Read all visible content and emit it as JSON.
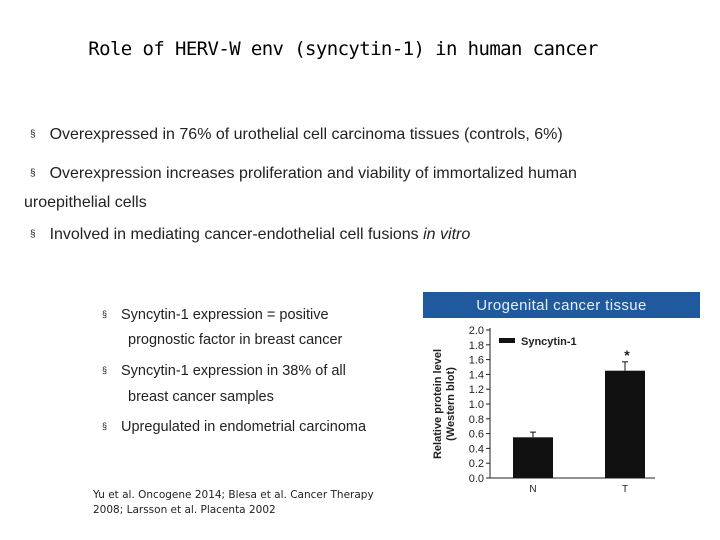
{
  "slide": {
    "title": "Role of HERV-W env (syncytin-1) in human cancer",
    "bullets": [
      {
        "mark": "§",
        "text": "Overexpressed in 76% of urothelial cell carcinoma tissues (controls, 6%)"
      },
      {
        "mark": "§",
        "text": "Overexpression increases proliferation and viability of immortalized human"
      },
      {
        "mark": "§",
        "text": "Involved in mediating cancer-endothelial cell fusions ",
        "emph": "in vitro"
      }
    ],
    "bullet2_cont": "uroepithelial cells",
    "sub_bullets": [
      {
        "mark": "§",
        "line1": "Syncytin-1 expression = positive",
        "line2": "prognostic factor in breast cancer"
      },
      {
        "mark": "§",
        "line1": "Syncytin-1 expression in 38% of all",
        "line2": "breast cancer samples"
      },
      {
        "mark": "§",
        "line1": "Upregulated in endometrial carcinoma"
      }
    ],
    "refs_line1": "Yu et al. Oncogene 2014; Blesa et al. Cancer Therapy",
    "refs_line2": "2008; Larsson et al. Placenta 2002",
    "panel_title": "Urogenital cancer tissue"
  },
  "colors": {
    "panel_bg": "#1f5a9e",
    "bar": "#111111"
  },
  "chart_data": {
    "type": "bar",
    "categories": [
      "N",
      "T"
    ],
    "values": [
      0.55,
      1.45
    ],
    "errors": [
      0.07,
      0.12
    ],
    "significance": [
      "",
      "*"
    ],
    "ylabel_line1": "Relative protein level",
    "ylabel_line2": "(Western blot)",
    "ylim": [
      0,
      2.0
    ],
    "yticks": [
      0.0,
      0.2,
      0.4,
      0.6,
      0.8,
      1.0,
      1.2,
      1.4,
      1.6,
      1.8,
      2.0
    ],
    "ytick_labels": [
      "0.0",
      "0.2",
      "0.4",
      "0.6",
      "0.8",
      "1.0",
      "1.2",
      "1.4",
      "1.6",
      "1.8",
      "2.0"
    ],
    "legend": "Syncytin-1",
    "legend_position": "top-left",
    "grid": false
  }
}
